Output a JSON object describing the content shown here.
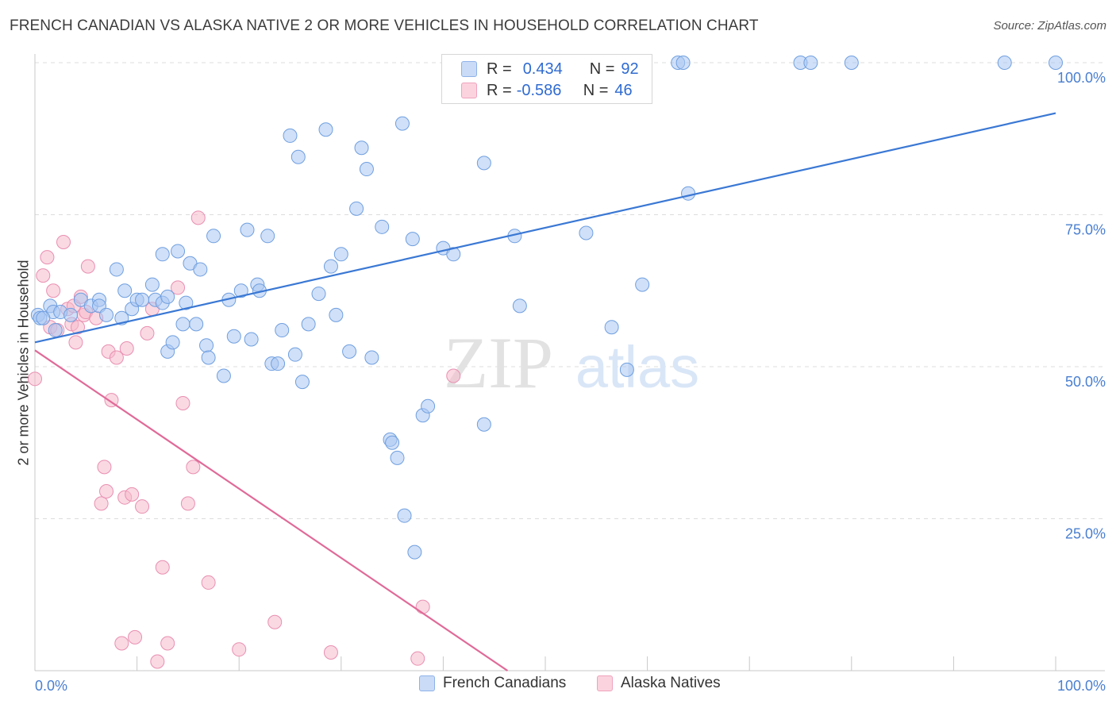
{
  "title": "FRENCH CANADIAN VS ALASKA NATIVE 2 OR MORE VEHICLES IN HOUSEHOLD CORRELATION CHART",
  "source": "Source: ZipAtlas.com",
  "watermark": {
    "zip": "ZIP",
    "atlas": "atlas"
  },
  "legend": {
    "rows": [
      {
        "r_label": "R =",
        "r_value": "0.434",
        "n_label": "N =",
        "n_value": "92",
        "color": "#a9c7f2"
      },
      {
        "r_label": "R =",
        "r_value": "-0.586",
        "n_label": "N =",
        "n_value": "46",
        "color": "#f6b9cc"
      }
    ]
  },
  "bottom_legend": [
    {
      "label": "French Canadians",
      "color": "#a9c7f2"
    },
    {
      "label": "Alaska Natives",
      "color": "#f6b9cc"
    }
  ],
  "colors": {
    "blue_line": "#3a78d4",
    "pink_line": "#e06a98",
    "blue_fill": "#a9c7f2",
    "pink_fill": "#f6b9cc",
    "axis_text": "#4a7fd0"
  },
  "chart_data": {
    "type": "scatter",
    "title": "FRENCH CANADIAN VS ALASKA NATIVE 2 OR MORE VEHICLES IN HOUSEHOLD CORRELATION CHART",
    "xlabel": "",
    "ylabel": "2 or more Vehicles in Household",
    "xlim": [
      0,
      100
    ],
    "ylim": [
      0,
      100
    ],
    "x_tick_labels": [
      "0.0%",
      "100.0%"
    ],
    "y_tick_labels": [
      "100.0%",
      "75.0%",
      "50.0%",
      "25.0%"
    ],
    "y_ticks": [
      100,
      75,
      50,
      25
    ],
    "grid": true,
    "legend_position": "top-center",
    "series": [
      {
        "name": "French Canadians",
        "color": "#a9c7f2",
        "trend": {
          "x": [
            0,
            100
          ],
          "y": [
            54.0,
            91.7
          ]
        },
        "points": [
          [
            0.3,
            58.5
          ],
          [
            0.5,
            58.0
          ],
          [
            1.5,
            60.0
          ],
          [
            1.8,
            59.0
          ],
          [
            2.5,
            59.0
          ],
          [
            3.5,
            58.5
          ],
          [
            4.5,
            61.0
          ],
          [
            5.5,
            60.0
          ],
          [
            6.3,
            61.0
          ],
          [
            6.3,
            60.0
          ],
          [
            7.0,
            58.5
          ],
          [
            8.0,
            66.0
          ],
          [
            8.5,
            58.0
          ],
          [
            8.8,
            62.5
          ],
          [
            9.5,
            59.5
          ],
          [
            10.0,
            61.0
          ],
          [
            10.5,
            61.0
          ],
          [
            11.5,
            63.5
          ],
          [
            11.8,
            61.0
          ],
          [
            12.5,
            68.5
          ],
          [
            12.5,
            60.5
          ],
          [
            13.0,
            61.5
          ],
          [
            13.0,
            52.5
          ],
          [
            13.5,
            54.0
          ],
          [
            14.0,
            69.0
          ],
          [
            14.5,
            57.0
          ],
          [
            14.8,
            60.5
          ],
          [
            15.2,
            67.0
          ],
          [
            15.8,
            57.0
          ],
          [
            16.2,
            66.0
          ],
          [
            16.8,
            53.5
          ],
          [
            17.0,
            51.5
          ],
          [
            17.5,
            71.5
          ],
          [
            18.5,
            48.5
          ],
          [
            19.0,
            61.0
          ],
          [
            19.5,
            55.0
          ],
          [
            20.2,
            62.5
          ],
          [
            20.8,
            72.5
          ],
          [
            21.2,
            54.5
          ],
          [
            21.8,
            63.5
          ],
          [
            22.0,
            62.5
          ],
          [
            22.8,
            71.5
          ],
          [
            23.2,
            50.5
          ],
          [
            23.8,
            50.5
          ],
          [
            24.2,
            56.0
          ],
          [
            25.0,
            88.0
          ],
          [
            25.5,
            52.0
          ],
          [
            25.8,
            84.5
          ],
          [
            26.2,
            47.5
          ],
          [
            26.8,
            57.0
          ],
          [
            27.8,
            62.0
          ],
          [
            28.5,
            89.0
          ],
          [
            29.0,
            66.5
          ],
          [
            29.5,
            58.5
          ],
          [
            30.0,
            68.5
          ],
          [
            30.8,
            52.5
          ],
          [
            31.5,
            76.0
          ],
          [
            32.0,
            86.0
          ],
          [
            32.5,
            82.5
          ],
          [
            33.0,
            51.5
          ],
          [
            34.0,
            73.0
          ],
          [
            34.8,
            38.0
          ],
          [
            35.0,
            37.5
          ],
          [
            35.5,
            35.0
          ],
          [
            36.0,
            90.0
          ],
          [
            36.2,
            25.5
          ],
          [
            37.0,
            71.0
          ],
          [
            37.2,
            19.5
          ],
          [
            38.0,
            42.0
          ],
          [
            38.5,
            43.5
          ],
          [
            40.0,
            69.5
          ],
          [
            41.0,
            68.5
          ],
          [
            44.0,
            83.5
          ],
          [
            44.0,
            40.5
          ],
          [
            47.0,
            71.5
          ],
          [
            47.5,
            60.0
          ],
          [
            50.0,
            100.0
          ],
          [
            50.5,
            100.0
          ],
          [
            54.0,
            72.0
          ],
          [
            56.5,
            56.5
          ],
          [
            58.0,
            49.5
          ],
          [
            59.5,
            63.5
          ],
          [
            63.0,
            100.0
          ],
          [
            63.5,
            100.0
          ],
          [
            64.0,
            78.5
          ],
          [
            75.0,
            100.0
          ],
          [
            76.0,
            100.0
          ],
          [
            80.0,
            100.0
          ],
          [
            95.0,
            100.0
          ],
          [
            100.0,
            100.0
          ],
          [
            0.8,
            58.0
          ],
          [
            2.0,
            56.0
          ]
        ]
      },
      {
        "name": "Alaska Natives",
        "color": "#f6b9cc",
        "trend": {
          "x": [
            0,
            46.3
          ],
          "y": [
            52.7,
            0.0
          ]
        },
        "points": [
          [
            0.0,
            48.0
          ],
          [
            0.8,
            65.0
          ],
          [
            1.2,
            68.0
          ],
          [
            1.5,
            56.5
          ],
          [
            1.8,
            62.5
          ],
          [
            2.2,
            56.0
          ],
          [
            2.8,
            70.5
          ],
          [
            3.2,
            59.5
          ],
          [
            3.6,
            57.0
          ],
          [
            3.8,
            60.0
          ],
          [
            4.0,
            54.0
          ],
          [
            4.2,
            56.5
          ],
          [
            4.5,
            61.5
          ],
          [
            4.8,
            58.5
          ],
          [
            5.0,
            59.0
          ],
          [
            5.2,
            66.5
          ],
          [
            6.0,
            58.0
          ],
          [
            6.5,
            27.5
          ],
          [
            6.8,
            33.5
          ],
          [
            7.0,
            29.5
          ],
          [
            7.2,
            52.5
          ],
          [
            7.5,
            44.5
          ],
          [
            8.0,
            51.5
          ],
          [
            8.5,
            4.5
          ],
          [
            8.8,
            28.5
          ],
          [
            9.0,
            53.0
          ],
          [
            9.5,
            29.0
          ],
          [
            9.8,
            5.5
          ],
          [
            10.5,
            27.0
          ],
          [
            11.0,
            55.5
          ],
          [
            11.5,
            59.5
          ],
          [
            12.0,
            1.5
          ],
          [
            12.5,
            17.0
          ],
          [
            13.0,
            4.5
          ],
          [
            14.0,
            63.0
          ],
          [
            14.5,
            44.0
          ],
          [
            15.0,
            27.5
          ],
          [
            15.5,
            33.5
          ],
          [
            16.0,
            74.5
          ],
          [
            17.0,
            14.5
          ],
          [
            20.0,
            3.5
          ],
          [
            23.5,
            8.0
          ],
          [
            29.0,
            3.0
          ],
          [
            37.5,
            2.0
          ],
          [
            38.0,
            10.5
          ],
          [
            41.0,
            48.5
          ]
        ]
      }
    ]
  }
}
